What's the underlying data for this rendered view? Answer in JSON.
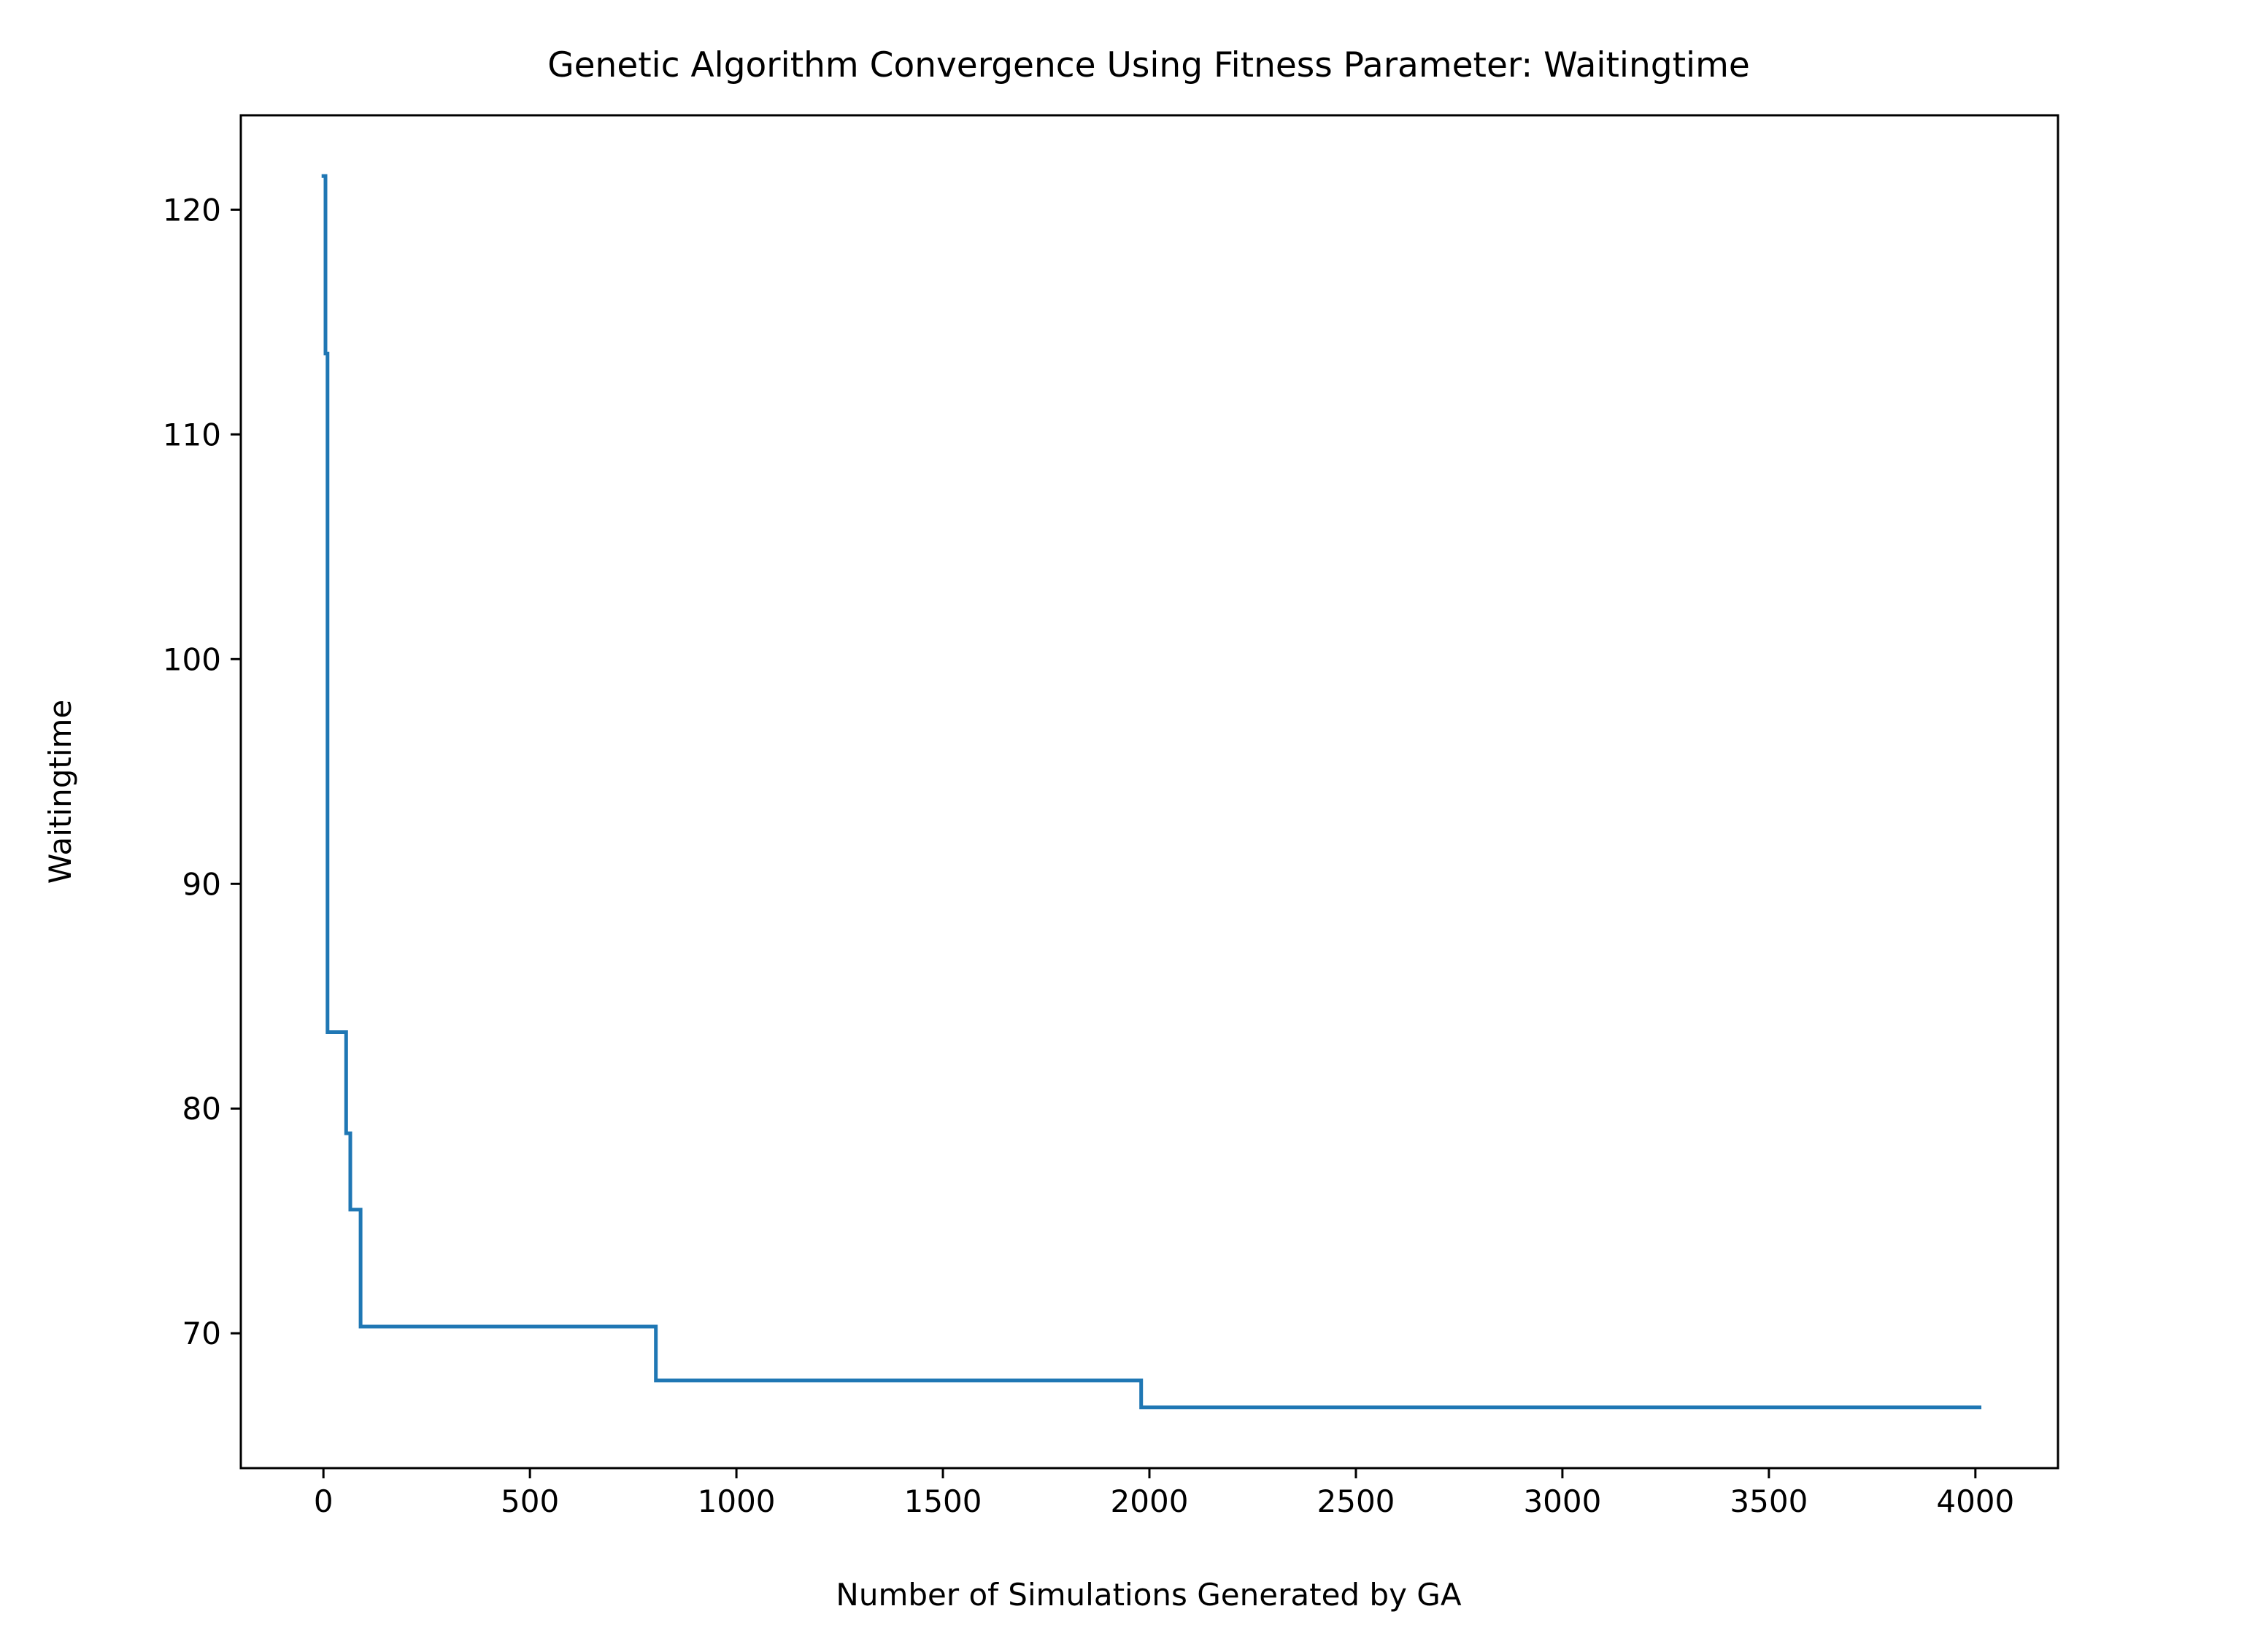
{
  "chart_data": {
    "type": "line",
    "title": "Genetic Algorithm Convergence Using Fitness Parameter: Waitingtime",
    "xlabel": "Number of Simulations Generated by GA",
    "ylabel": "Waitingtime",
    "xlim": [
      -200,
      4200
    ],
    "ylim": [
      64,
      124.2
    ],
    "xticks": [
      0,
      500,
      1000,
      1500,
      2000,
      2500,
      3000,
      3500,
      4000
    ],
    "yticks": [
      70,
      80,
      90,
      100,
      110,
      120
    ],
    "grid": false,
    "legend": "none",
    "series": [
      {
        "color": "#1f77b4",
        "x": [
          0,
          5,
          5,
          10,
          10,
          55,
          55,
          65,
          65,
          85,
          85,
          90,
          90,
          805,
          805,
          1980,
          1980,
          4010
        ],
        "y": [
          121.5,
          121.5,
          113.6,
          113.6,
          83.4,
          83.4,
          78.9,
          78.9,
          75.5,
          75.5,
          75.5,
          75.5,
          70.3,
          70.3,
          67.9,
          67.9,
          66.7,
          66.7
        ]
      }
    ]
  }
}
